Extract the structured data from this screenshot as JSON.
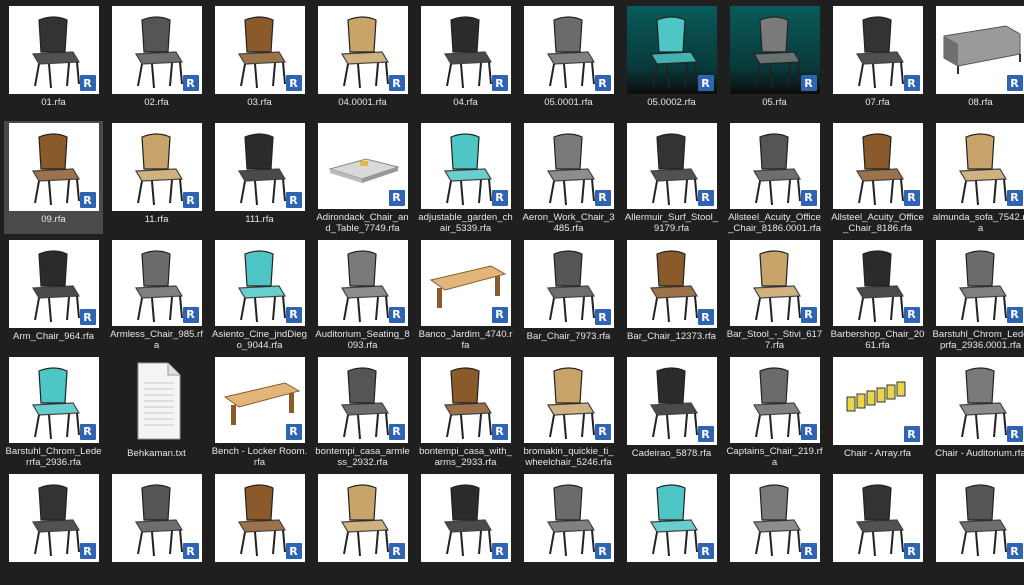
{
  "colors": {
    "background": "#1f1f1f",
    "badge": "#2f64b4",
    "selected": "#4a4a4a"
  },
  "badge_letter": "R",
  "files": [
    {
      "name": "01.rfa",
      "icon": "lounge-chair-icon",
      "thumb": "light"
    },
    {
      "name": "02.rfa",
      "icon": "wood-chair-icon",
      "thumb": "light"
    },
    {
      "name": "03.rfa",
      "icon": "wishbone-chair-icon",
      "thumb": "light"
    },
    {
      "name": "04.0001.rfa",
      "icon": "lounge-chair-dark-icon",
      "thumb": "light"
    },
    {
      "name": "04.rfa",
      "icon": "lounge-chair-brown-icon",
      "thumb": "light"
    },
    {
      "name": "05.0001.rfa",
      "icon": "slat-armchair-icon",
      "thumb": "light"
    },
    {
      "name": "05.0002.rfa",
      "icon": "slat-armchair-icon",
      "thumb": "dark"
    },
    {
      "name": "05.rfa",
      "icon": "slat-armchair-icon",
      "thumb": "dark"
    },
    {
      "name": "07.rfa",
      "icon": "armchair-gray-icon",
      "thumb": "light"
    },
    {
      "name": "08.rfa",
      "icon": "sofa-icon",
      "thumb": "light"
    },
    {
      "name": "09.rfa",
      "icon": "lounge-seat-icon",
      "thumb": "light",
      "selected": true
    },
    {
      "name": "11.rfa",
      "icon": "lounge-chair-gray-icon",
      "thumb": "light"
    },
    {
      "name": "111.rfa",
      "icon": "office-chair-icon",
      "thumb": "light"
    },
    {
      "name": "Adirondack_Chair_and_Table_7749.rfa",
      "icon": "table-icon",
      "thumb": "light"
    },
    {
      "name": "adjustable_garden_chair_5339.rfa",
      "icon": "garden-chair-icon",
      "thumb": "light"
    },
    {
      "name": "Aeron_Work_Chair_3485.rfa",
      "icon": "office-chair-icon",
      "thumb": "light"
    },
    {
      "name": "Allermuir_Surf_Stool_9179.rfa",
      "icon": "stool-icon",
      "thumb": "light"
    },
    {
      "name": "Allsteel_Acuity_Office_Chair_8186.0001.rfa",
      "icon": "office-chair-plan-icon",
      "thumb": "light"
    },
    {
      "name": "Allsteel_Acuity_Office_Chair_8186.rfa",
      "icon": "office-chair-icon",
      "thumb": "light"
    },
    {
      "name": "almunda_sofa_7542.rfa",
      "icon": "armchair-icon",
      "thumb": "light"
    },
    {
      "name": "Arm_Chair_964.rfa",
      "icon": "ornate-armchair-icon",
      "thumb": "light"
    },
    {
      "name": "Armless_Chair_985.rfa",
      "icon": "ornate-chair-icon",
      "thumb": "light"
    },
    {
      "name": "Asiento_Cine_jndDiego_9044.rfa",
      "icon": "cinema-seat-icon",
      "thumb": "light"
    },
    {
      "name": "Auditorium_Seating_8093.rfa",
      "icon": "auditorium-seat-icon",
      "thumb": "light"
    },
    {
      "name": "Banco_Jardim_4740.rfa",
      "icon": "bench-icon",
      "thumb": "light"
    },
    {
      "name": "Bar_Chair_7973.rfa",
      "icon": "bar-chair-icon",
      "thumb": "light"
    },
    {
      "name": "Bar_Chair_12373.rfa",
      "icon": "bar-chair-modern-icon",
      "thumb": "light"
    },
    {
      "name": "Bar_Stool_-_Stivi_6177.rfa",
      "icon": "bar-stool-icon",
      "thumb": "light"
    },
    {
      "name": "Barbershop_Chair_2061.rfa",
      "icon": "barber-chair-icon",
      "thumb": "light"
    },
    {
      "name": "Barstuhl_Chrom_Ledерrfa_2936.0001.rfa",
      "icon": "barstool-chrome-icon",
      "thumb": "light"
    },
    {
      "name": "Barstuhl_Chrom_Lederrfa_2936.rfa",
      "icon": "barstool-chrome-icon",
      "thumb": "light"
    },
    {
      "name": "Behkaman.txt",
      "icon": "text-file-icon",
      "thumb": "doc"
    },
    {
      "name": "Bench - Locker Room.rfa",
      "icon": "bench-icon",
      "thumb": "light"
    },
    {
      "name": "bontempi_casa_armless_2932.rfa",
      "icon": "wire-chair-icon",
      "thumb": "light"
    },
    {
      "name": "bontempi_casa_with_arms_2933.rfa",
      "icon": "wire-armchair-icon",
      "thumb": "light"
    },
    {
      "name": "bromakin_quickie_ti_wheelchair_5246.rfa",
      "icon": "wheelchair-icon",
      "thumb": "light"
    },
    {
      "name": "Cadeirao_5878.rfa",
      "icon": "chaise-icon",
      "thumb": "light"
    },
    {
      "name": "Captains_Chair_219.rfa",
      "icon": "captain-chair-icon",
      "thumb": "light"
    },
    {
      "name": "Chair - Array.rfa",
      "icon": "chair-array-icon",
      "thumb": "light"
    },
    {
      "name": "Chair - Auditorium.rfa",
      "icon": "auditorium-chair-icon",
      "thumb": "light"
    },
    {
      "name": "",
      "icon": "chair-icon",
      "thumb": "light"
    },
    {
      "name": "",
      "icon": "task-chair-icon",
      "thumb": "light"
    },
    {
      "name": "",
      "icon": "office-chair-icon",
      "thumb": "light"
    },
    {
      "name": "",
      "icon": "task-chair-cyan-icon",
      "thumb": "light"
    },
    {
      "name": "",
      "icon": "task-chair-icon",
      "thumb": "light"
    },
    {
      "name": "",
      "icon": "task-chair-icon",
      "thumb": "light"
    },
    {
      "name": "",
      "icon": "tall-back-chair-icon",
      "thumb": "light"
    },
    {
      "name": "",
      "icon": "cantilever-chair-icon",
      "thumb": "light"
    },
    {
      "name": "",
      "icon": "cantilever-chair-icon",
      "thumb": "light"
    },
    {
      "name": "",
      "icon": "armchair-icon",
      "thumb": "light"
    }
  ]
}
